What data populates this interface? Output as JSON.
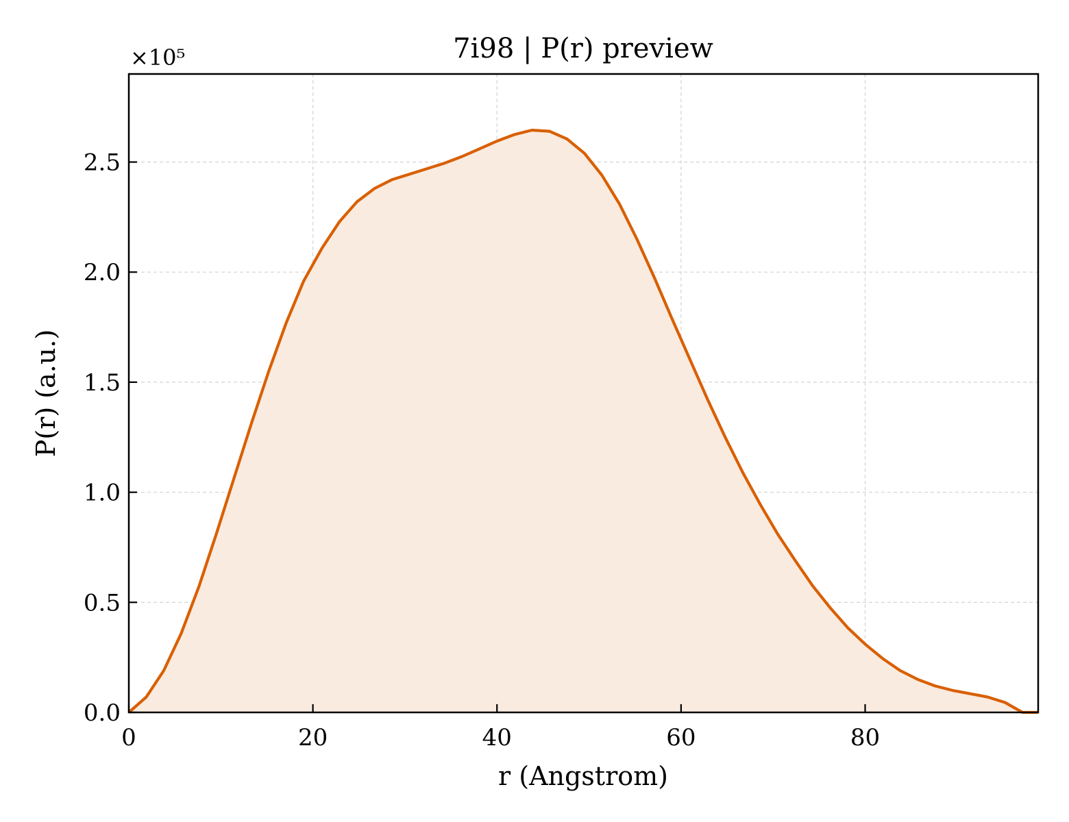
{
  "chart_data": {
    "type": "area",
    "title": "7i98 | P(r) preview",
    "xlabel": "r (Angstrom)",
    "ylabel": "P(r) (a.u.)",
    "y_multiplier_label": "×10⁵",
    "xlim": [
      0,
      98.8
    ],
    "ylim": [
      0,
      2.9
    ],
    "xticks": [
      0,
      20,
      40,
      60,
      80
    ],
    "xtick_labels": [
      "0",
      "20",
      "40",
      "60",
      "80"
    ],
    "yticks": [
      0,
      0.5,
      1.0,
      1.5,
      2.0,
      2.5
    ],
    "ytick_labels": [
      "0.0",
      "0.5",
      "1.0",
      "1.5",
      "2.0",
      "2.5"
    ],
    "grid": true,
    "line_color": "#d95f02",
    "fill_color": "#f9ebe0",
    "series": [
      {
        "x": [
          0,
          1.9,
          3.8,
          5.7,
          7.6,
          9.5,
          11.4,
          13.3,
          15.2,
          17.1,
          19.0,
          21.0,
          22.9,
          24.8,
          26.7,
          28.6,
          30.5,
          32.4,
          34.3,
          36.2,
          38.1,
          40.0,
          41.9,
          43.8,
          45.7,
          47.6,
          49.5,
          51.4,
          53.3,
          55.2,
          57.1,
          59.0,
          61.0,
          62.9,
          64.8,
          66.7,
          68.6,
          70.5,
          72.4,
          74.3,
          76.2,
          78.1,
          80.0,
          81.9,
          83.8,
          85.7,
          87.6,
          89.5,
          91.4,
          93.3,
          95.2,
          97.1,
          98.8
        ],
        "y": [
          0.0,
          0.07,
          0.19,
          0.36,
          0.57,
          0.81,
          1.06,
          1.31,
          1.55,
          1.77,
          1.96,
          2.11,
          2.23,
          2.32,
          2.38,
          2.42,
          2.445,
          2.47,
          2.495,
          2.525,
          2.56,
          2.595,
          2.625,
          2.645,
          2.64,
          2.605,
          2.54,
          2.44,
          2.31,
          2.15,
          1.975,
          1.79,
          1.6,
          1.42,
          1.25,
          1.09,
          0.945,
          0.81,
          0.69,
          0.575,
          0.475,
          0.385,
          0.31,
          0.245,
          0.19,
          0.15,
          0.12,
          0.1,
          0.085,
          0.07,
          0.045,
          0.0,
          0.0
        ]
      }
    ]
  }
}
